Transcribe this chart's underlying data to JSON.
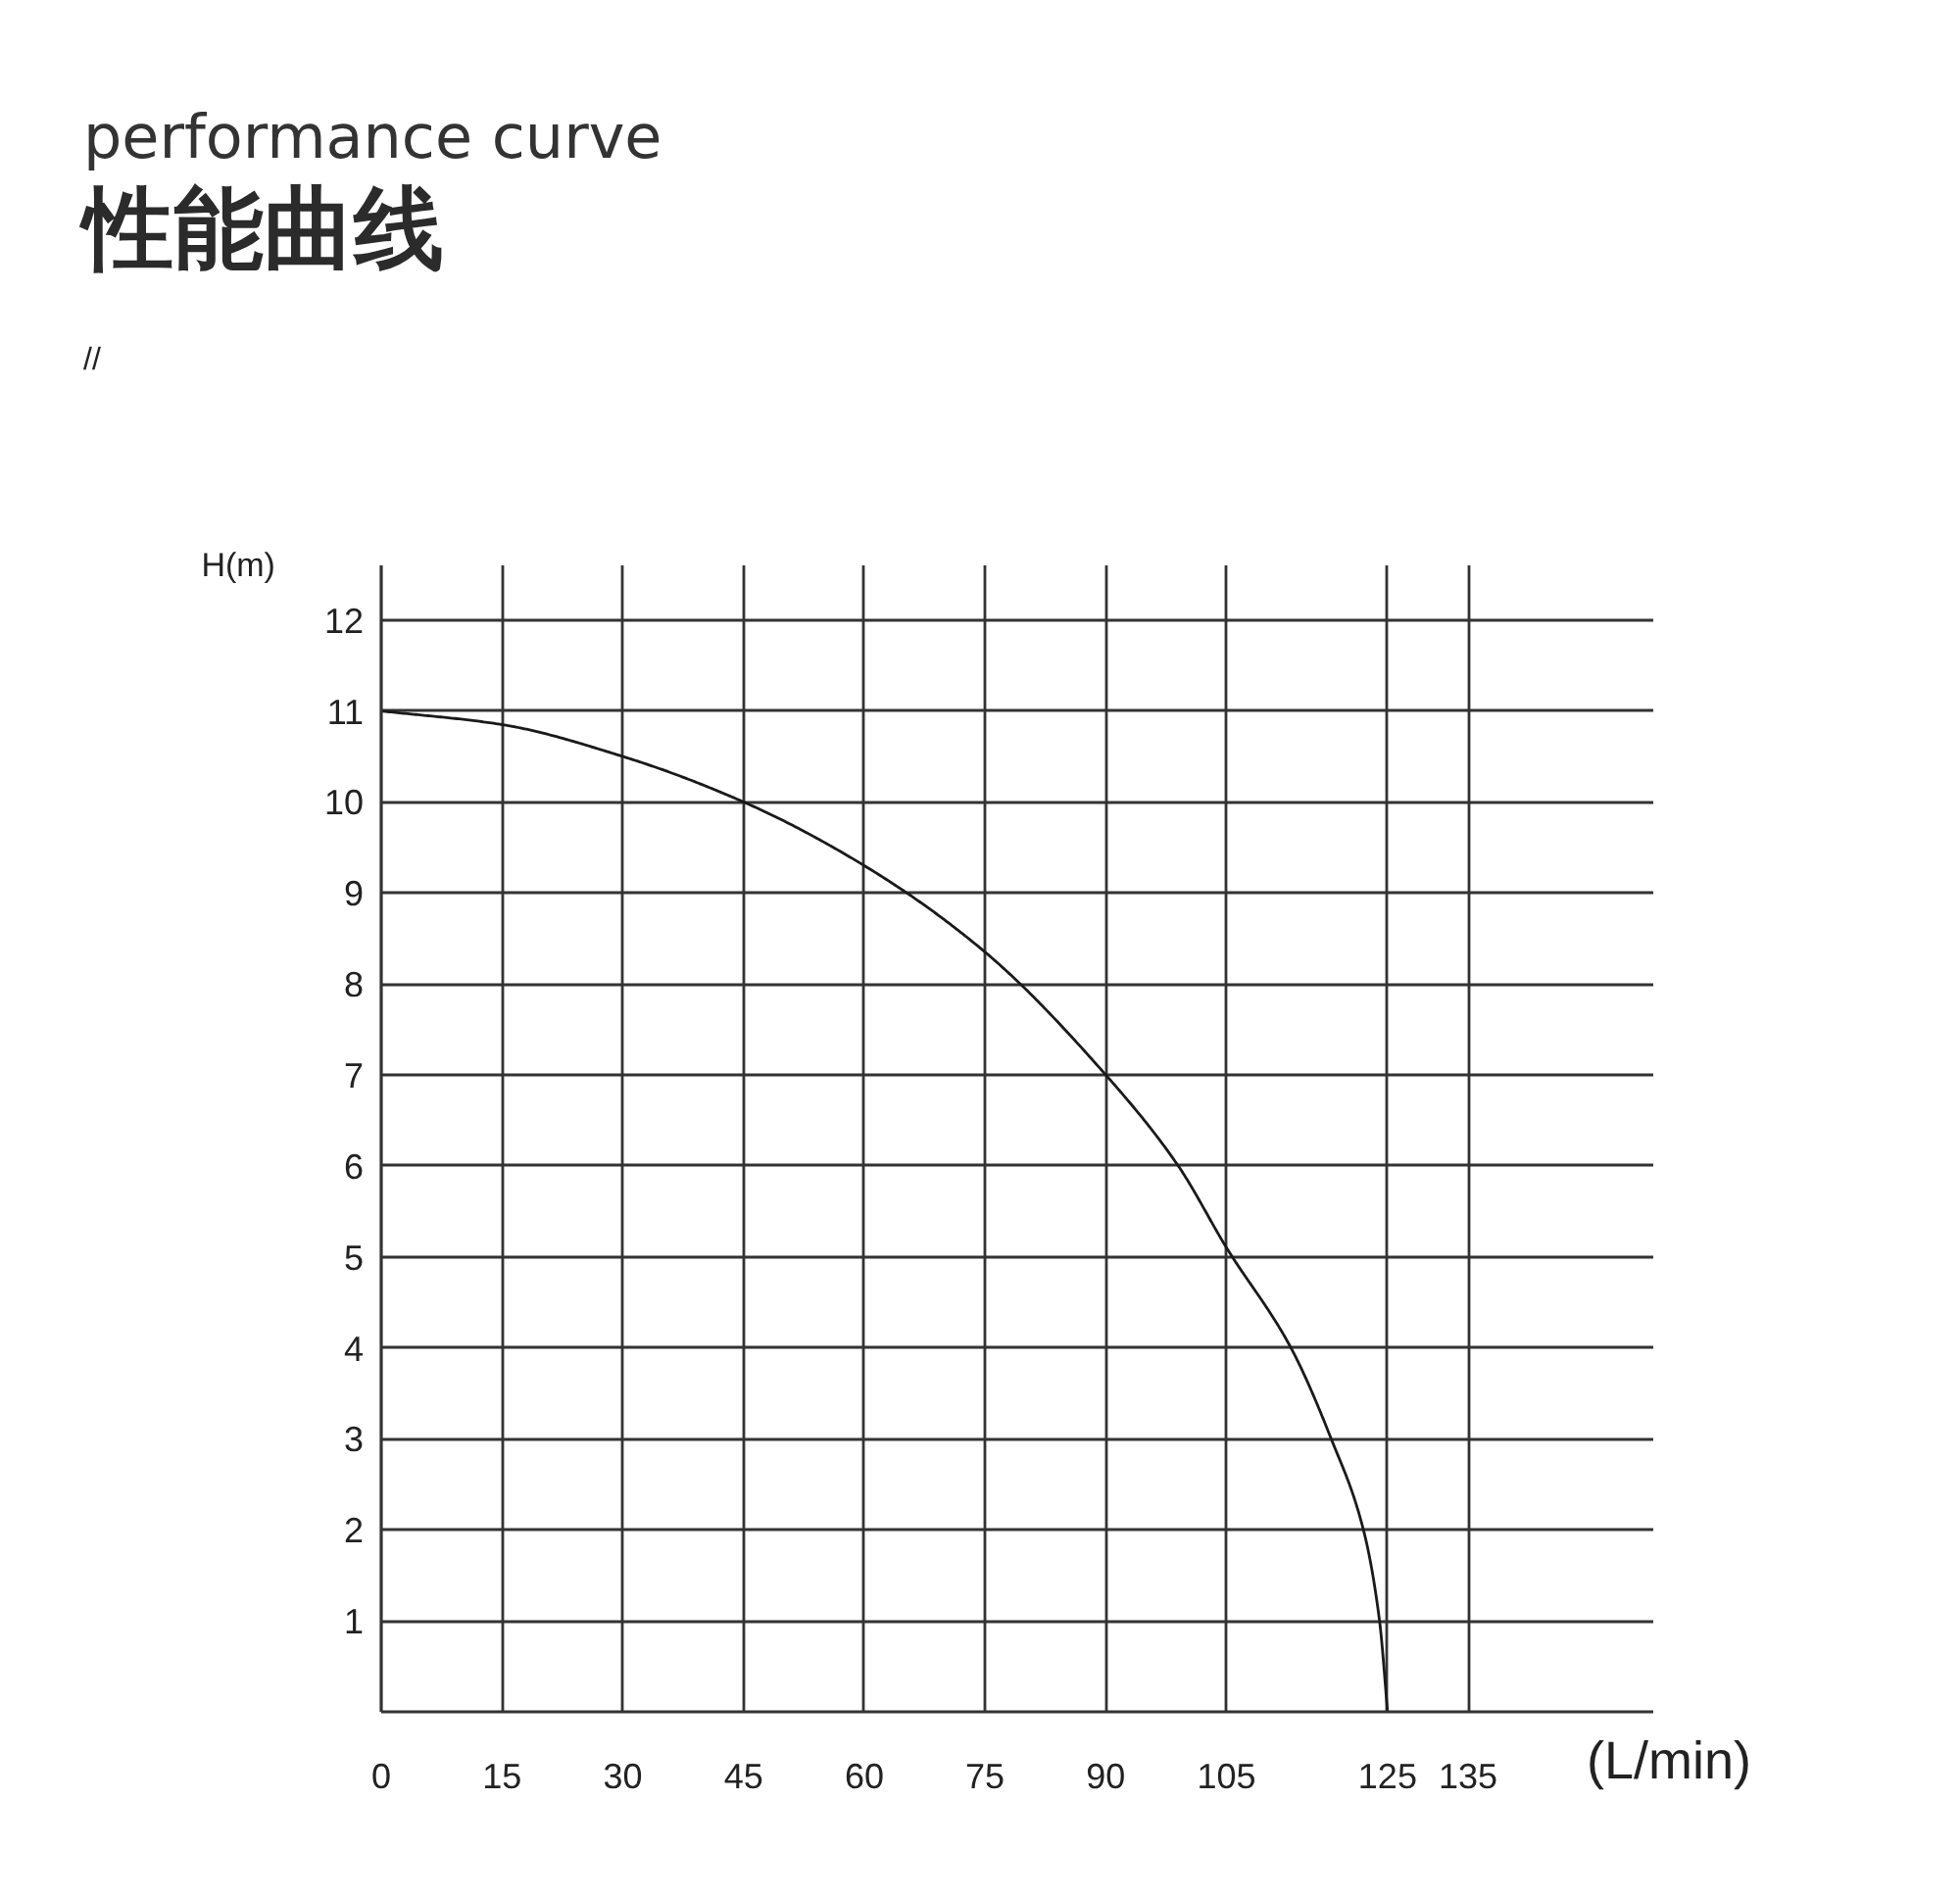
{
  "chart_data": {
    "type": "line",
    "title": "performance curve",
    "subtitle": "性能曲线",
    "annotations": [
      "//"
    ],
    "xlabel": "(L/min)",
    "ylabel": "H(m)",
    "x": [
      0,
      15,
      30,
      45,
      60,
      75,
      90,
      99,
      105,
      113,
      118,
      122,
      124,
      125
    ],
    "values": [
      11,
      10.85,
      10.5,
      10.0,
      9.3,
      8.35,
      7.0,
      6.0,
      5.1,
      4.0,
      3.0,
      2.0,
      1.0,
      0
    ],
    "color": "#1a1a1a",
    "xlim": [
      0,
      158
    ],
    "ylim": [
      0,
      12.6
    ],
    "xticks": [
      0,
      15,
      30,
      45,
      60,
      75,
      90,
      105,
      125,
      135
    ],
    "yticks": [
      1,
      2,
      3,
      4,
      5,
      6,
      7,
      8,
      9,
      10,
      11,
      12
    ],
    "grid": true
  }
}
